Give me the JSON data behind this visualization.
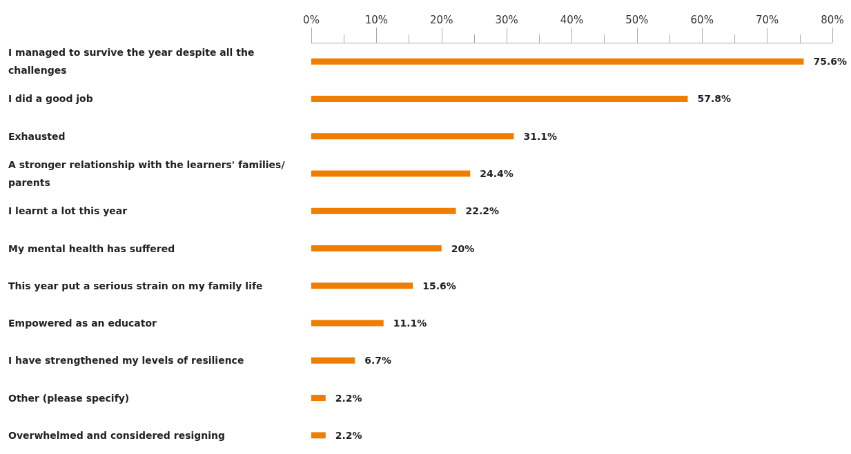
{
  "chart_data": {
    "type": "bar",
    "orientation": "horizontal",
    "categories": [
      "I managed to survive the year despite all the challenges",
      "I did a good job",
      "Exhausted",
      "A stronger relationship with the learners' families/parents",
      "I learnt a lot this year",
      "My mental health has suffered",
      "This year put a serious strain on my family life",
      "Empowered as an educator",
      "I have strengthened my levels of resilience",
      "Other (please specify)",
      "Overwhelmed and considered resigning"
    ],
    "values": [
      75.6,
      57.8,
      31.1,
      24.4,
      22.2,
      20,
      15.6,
      11.1,
      6.7,
      2.2,
      2.2
    ],
    "value_labels": [
      "75.6%",
      "57.8%",
      "31.1%",
      "24.4%",
      "22.2%",
      "20%",
      "15.6%",
      "11.1%",
      "6.7%",
      "2.2%",
      "2.2%"
    ],
    "color": "#ef7d00",
    "xlim": [
      0,
      80
    ],
    "xticks": [
      {
        "value": 0,
        "label": "0%"
      },
      {
        "value": 5,
        "label": null
      },
      {
        "value": 10,
        "label": "10%"
      },
      {
        "value": 15,
        "label": null
      },
      {
        "value": 20,
        "label": "20%"
      },
      {
        "value": 25,
        "label": null
      },
      {
        "value": 30,
        "label": "30%"
      },
      {
        "value": 35,
        "label": null
      },
      {
        "value": 40,
        "label": "40%"
      },
      {
        "value": 45,
        "label": null
      },
      {
        "value": 50,
        "label": "50%"
      },
      {
        "value": 55,
        "label": null
      },
      {
        "value": 60,
        "label": "60%"
      },
      {
        "value": 65,
        "label": null
      },
      {
        "value": 70,
        "label": "70%"
      },
      {
        "value": 75,
        "label": null
      },
      {
        "value": 80,
        "label": "80%"
      }
    ],
    "grid": false
  }
}
